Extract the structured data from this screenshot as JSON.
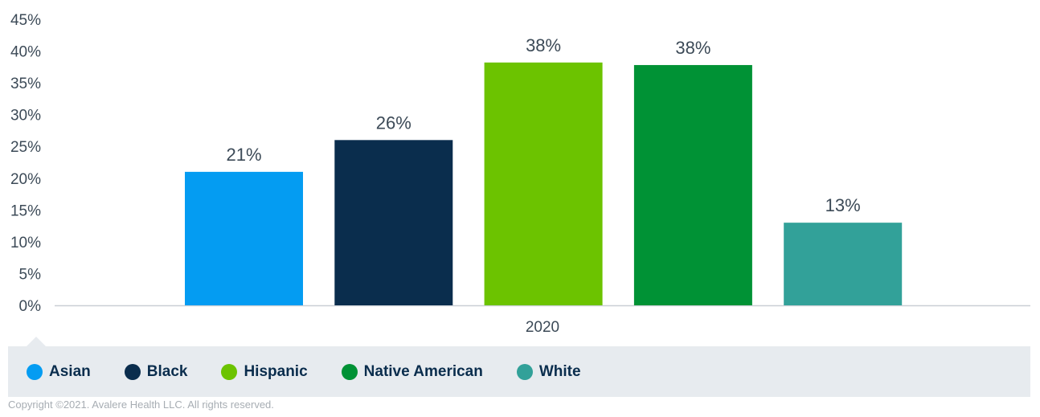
{
  "chart_data": {
    "type": "bar",
    "title": "",
    "xlabel": "",
    "ylabel": "",
    "categories": [
      "2020"
    ],
    "ylim": [
      0,
      45
    ],
    "yticks": [
      "0%",
      "5%",
      "10%",
      "15%",
      "20%",
      "25%",
      "30%",
      "35%",
      "40%",
      "45%"
    ],
    "grid": false,
    "legend_position": "bottom",
    "series": [
      {
        "name": "Asian",
        "values": [
          21
        ],
        "label": "21%",
        "color": "#049cf2"
      },
      {
        "name": "Black",
        "values": [
          26
        ],
        "label": "26%",
        "color": "#0a2d4d"
      },
      {
        "name": "Hispanic",
        "values": [
          38.2
        ],
        "label": "38%",
        "color": "#6cc300"
      },
      {
        "name": "Native American",
        "values": [
          37.8
        ],
        "label": "38%",
        "color": "#009235"
      },
      {
        "name": "White",
        "values": [
          13
        ],
        "label": "13%",
        "color": "#32a199"
      }
    ]
  },
  "legend": {
    "items": [
      "Asian",
      "Black",
      "Hispanic",
      "Native American",
      "White"
    ]
  },
  "footer": {
    "copyright": "Copyright ©2021. Avalere Health LLC. All rights reserved."
  }
}
